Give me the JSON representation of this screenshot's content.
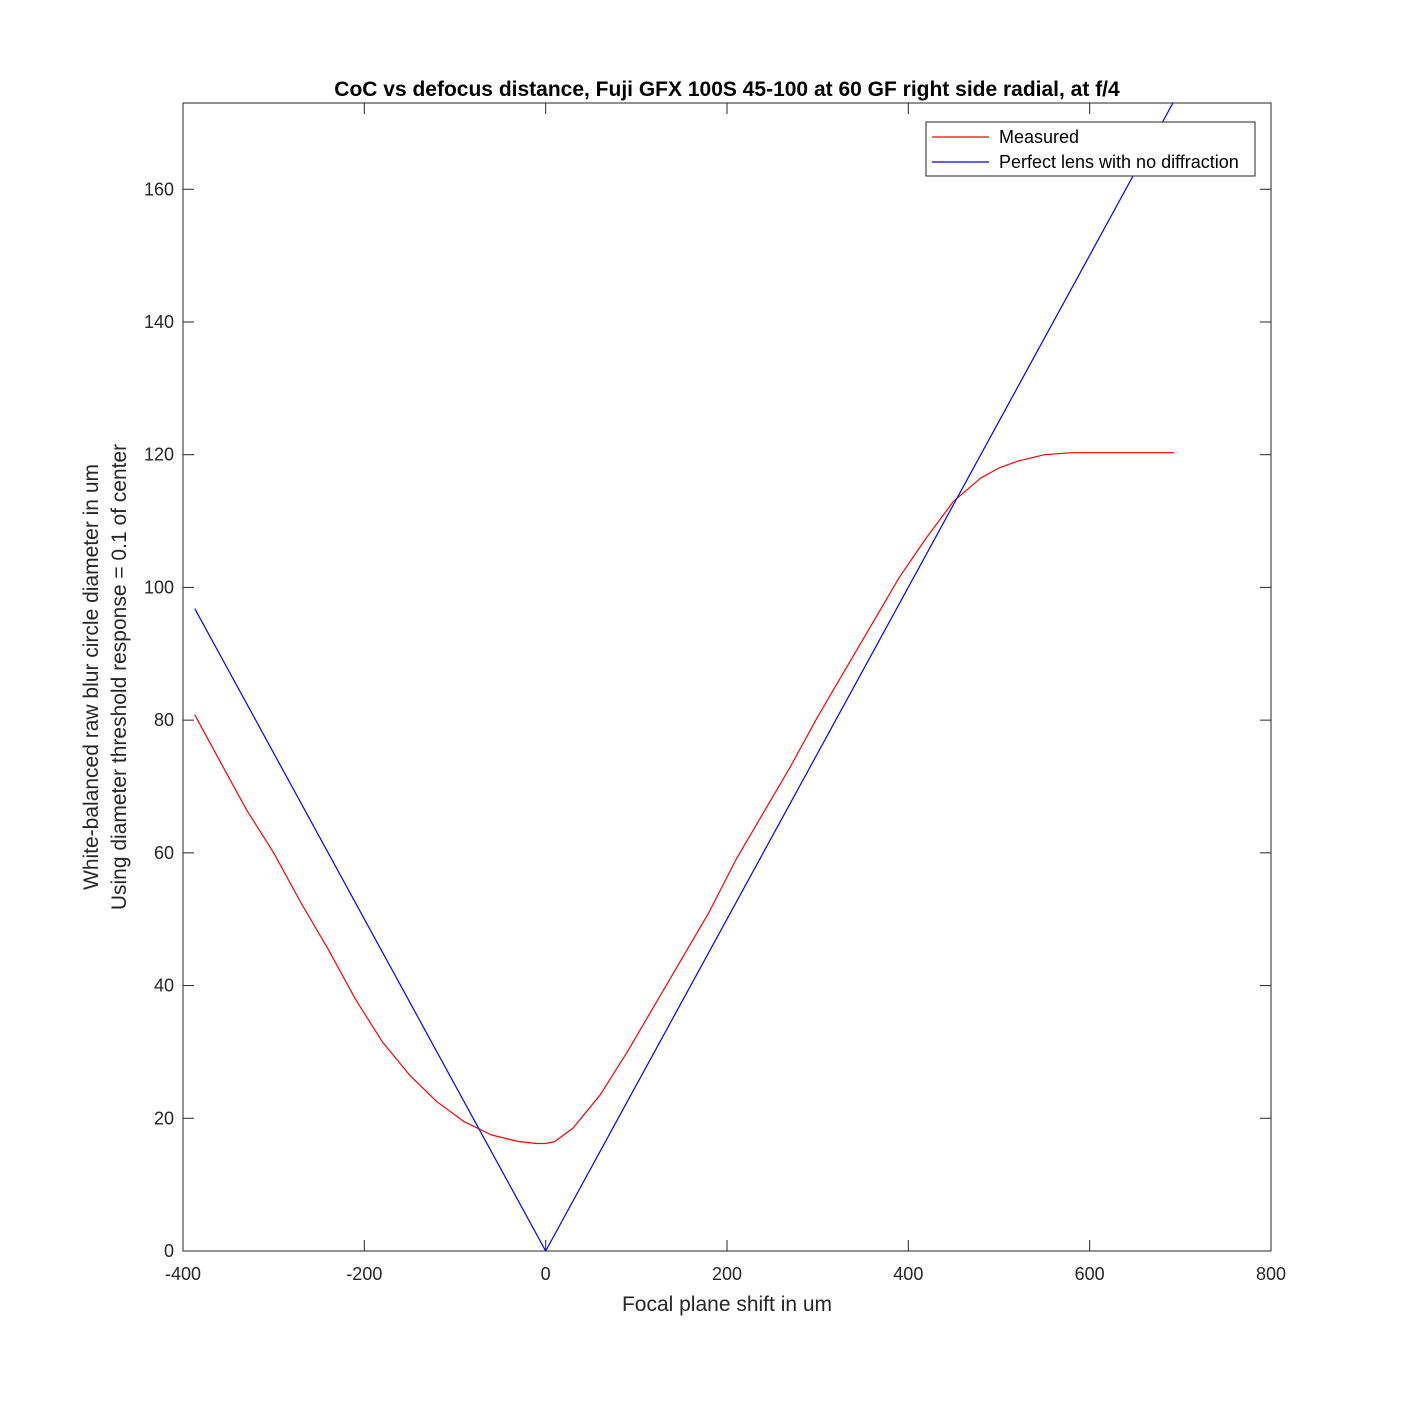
{
  "chart_data": {
    "type": "line",
    "title": "CoC vs defocus distance, Fuji GFX 100S 45-100 at 60 GF right side radial, at f/4",
    "xlabel": "Focal plane shift in um",
    "ylabel": [
      "White-balanced raw blur circle diameter in um",
      "Using diameter threshold response = 0.1 of center"
    ],
    "xlim": [
      -400,
      800
    ],
    "ylim": [
      0,
      173
    ],
    "xticks": [
      -400,
      -200,
      0,
      200,
      400,
      600,
      800
    ],
    "yticks": [
      0,
      20,
      40,
      60,
      80,
      100,
      120,
      140,
      160
    ],
    "grid": false,
    "legend_position": "top-right",
    "series": [
      {
        "name": "Measured",
        "color": "#ff0000",
        "x": [
          -387,
          -360,
          -330,
          -300,
          -270,
          -240,
          -210,
          -180,
          -150,
          -120,
          -90,
          -60,
          -30,
          -10,
          0,
          10,
          30,
          60,
          90,
          120,
          150,
          180,
          210,
          240,
          270,
          300,
          330,
          360,
          390,
          420,
          450,
          480,
          500,
          520,
          550,
          580,
          600,
          650,
          693
        ],
        "y": [
          80.8,
          74,
          66.5,
          60,
          52.5,
          45.5,
          38,
          31.5,
          26.5,
          22.5,
          19.5,
          17.5,
          16.5,
          16.2,
          16.2,
          16.5,
          18.5,
          23.5,
          30,
          37,
          44,
          51,
          59,
          66,
          73,
          80.5,
          87.5,
          94.5,
          101.5,
          107.5,
          113,
          116.5,
          118,
          119,
          120,
          120.3,
          120.3,
          120.3,
          120.3
        ]
      },
      {
        "name": "Perfect lens with no diffraction",
        "color": "#0000ff",
        "x": [
          -387,
          0,
          693
        ],
        "y": [
          96.8,
          0,
          173.3
        ]
      }
    ]
  }
}
